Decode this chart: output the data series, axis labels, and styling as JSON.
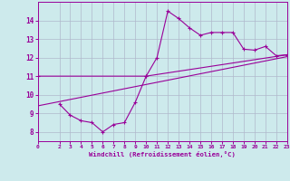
{
  "xlabel": "Windchill (Refroidissement éolien,°C)",
  "background_color": "#cdeaec",
  "grid_color": "#b0b8cc",
  "line_color": "#990099",
  "xlim": [
    0,
    23
  ],
  "ylim": [
    7.5,
    15.0
  ],
  "xticks": [
    0,
    2,
    3,
    4,
    5,
    6,
    7,
    8,
    9,
    10,
    11,
    12,
    13,
    14,
    15,
    16,
    17,
    18,
    19,
    20,
    21,
    22,
    23
  ],
  "yticks": [
    8,
    9,
    10,
    11,
    12,
    13,
    14
  ],
  "line1_x": [
    2,
    3,
    4,
    5,
    6,
    7,
    8,
    9,
    10,
    11,
    12,
    13,
    14,
    15,
    16,
    17,
    18,
    19,
    20,
    21,
    22,
    23
  ],
  "line1_y": [
    9.5,
    8.9,
    8.6,
    8.5,
    8.0,
    8.4,
    8.5,
    9.6,
    11.0,
    12.0,
    14.5,
    14.1,
    13.6,
    13.2,
    13.35,
    13.35,
    13.35,
    12.45,
    12.4,
    12.6,
    12.1,
    12.15
  ],
  "line2_x": [
    0,
    10,
    23
  ],
  "line2_y": [
    11.0,
    11.0,
    12.15
  ],
  "line3_x": [
    0,
    23
  ],
  "line3_y": [
    9.4,
    12.05
  ]
}
